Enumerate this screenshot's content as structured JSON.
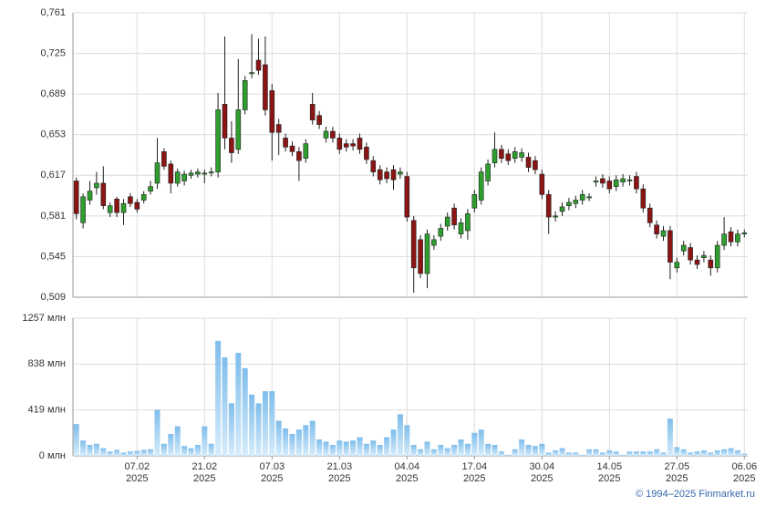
{
  "chart_data": [
    {
      "type": "candlestick",
      "up_color": "#2e9e2e",
      "down_color": "#8b1414",
      "ylim": [
        0.509,
        0.761
      ],
      "yticks": [
        {
          "value": 0.761,
          "label": "0,761"
        },
        {
          "value": 0.725,
          "label": "0,725"
        },
        {
          "value": 0.689,
          "label": "0,689"
        },
        {
          "value": 0.653,
          "label": "0,653"
        },
        {
          "value": 0.617,
          "label": "0,617"
        },
        {
          "value": 0.581,
          "label": "0,581"
        },
        {
          "value": 0.545,
          "label": "0,545"
        },
        {
          "value": 0.509,
          "label": "0,509"
        }
      ],
      "grid": true,
      "open": [
        0.612,
        0.575,
        0.595,
        0.606,
        0.61,
        0.584,
        0.596,
        0.584,
        0.598,
        0.593,
        0.595,
        0.603,
        0.61,
        0.638,
        0.627,
        0.61,
        0.612,
        0.617,
        0.618,
        0.618,
        0.619,
        0.62,
        0.68,
        0.65,
        0.64,
        0.675,
        0.707,
        0.719,
        0.715,
        0.692,
        0.662,
        0.65,
        0.643,
        0.638,
        0.632,
        0.68,
        0.67,
        0.65,
        0.656,
        0.65,
        0.645,
        0.645,
        0.65,
        0.642,
        0.63,
        0.622,
        0.62,
        0.622,
        0.618,
        0.616,
        0.577,
        0.56,
        0.53,
        0.555,
        0.563,
        0.572,
        0.588,
        0.565,
        0.568,
        0.588,
        0.595,
        0.612,
        0.628,
        0.64,
        0.636,
        0.632,
        0.633,
        0.633,
        0.63,
        0.618,
        0.6,
        0.58,
        0.585,
        0.59,
        0.592,
        0.595,
        0.597,
        0.611,
        0.614,
        0.612,
        0.607,
        0.611,
        0.612,
        0.616,
        0.605,
        0.588,
        0.573,
        0.563,
        0.568,
        0.535,
        0.55,
        0.553,
        0.542,
        0.544,
        0.542,
        0.535,
        0.555,
        0.567,
        0.558,
        0.565
      ],
      "high": [
        0.615,
        0.601,
        0.612,
        0.62,
        0.625,
        0.593,
        0.598,
        0.596,
        0.601,
        0.596,
        0.603,
        0.612,
        0.65,
        0.641,
        0.63,
        0.623,
        0.621,
        0.622,
        0.623,
        0.622,
        0.624,
        0.69,
        0.74,
        0.665,
        0.72,
        0.705,
        0.742,
        0.738,
        0.74,
        0.698,
        0.667,
        0.654,
        0.647,
        0.642,
        0.649,
        0.69,
        0.674,
        0.66,
        0.66,
        0.654,
        0.649,
        0.649,
        0.654,
        0.646,
        0.634,
        0.626,
        0.624,
        0.626,
        0.624,
        0.62,
        0.581,
        0.564,
        0.569,
        0.564,
        0.574,
        0.584,
        0.592,
        0.579,
        0.587,
        0.604,
        0.624,
        0.631,
        0.655,
        0.644,
        0.64,
        0.642,
        0.641,
        0.637,
        0.634,
        0.622,
        0.604,
        0.585,
        0.593,
        0.597,
        0.599,
        0.604,
        0.601,
        0.616,
        0.618,
        0.616,
        0.617,
        0.618,
        0.617,
        0.62,
        0.609,
        0.592,
        0.577,
        0.572,
        0.572,
        0.544,
        0.559,
        0.557,
        0.546,
        0.55,
        0.546,
        0.559,
        0.58,
        0.571,
        0.569,
        0.569
      ],
      "low": [
        0.578,
        0.57,
        0.591,
        0.6,
        0.587,
        0.58,
        0.58,
        0.573,
        0.589,
        0.584,
        0.592,
        0.6,
        0.605,
        0.622,
        0.601,
        0.607,
        0.608,
        0.614,
        0.615,
        0.61,
        0.616,
        0.615,
        0.64,
        0.628,
        0.636,
        0.671,
        0.703,
        0.706,
        0.67,
        0.63,
        0.635,
        0.638,
        0.634,
        0.612,
        0.628,
        0.662,
        0.658,
        0.646,
        0.646,
        0.636,
        0.638,
        0.639,
        0.636,
        0.627,
        0.616,
        0.609,
        0.61,
        0.604,
        0.614,
        0.576,
        0.513,
        0.526,
        0.517,
        0.551,
        0.559,
        0.568,
        0.569,
        0.561,
        0.56,
        0.584,
        0.591,
        0.608,
        0.624,
        0.628,
        0.626,
        0.628,
        0.629,
        0.62,
        0.618,
        0.596,
        0.565,
        0.576,
        0.581,
        0.586,
        0.588,
        0.591,
        0.594,
        0.607,
        0.606,
        0.601,
        0.603,
        0.607,
        0.608,
        0.601,
        0.584,
        0.571,
        0.561,
        0.559,
        0.525,
        0.531,
        0.546,
        0.538,
        0.534,
        0.54,
        0.528,
        0.531,
        0.551,
        0.554,
        0.554,
        0.562
      ],
      "close": [
        0.583,
        0.598,
        0.603,
        0.61,
        0.59,
        0.59,
        0.584,
        0.592,
        0.592,
        0.587,
        0.6,
        0.607,
        0.628,
        0.625,
        0.61,
        0.62,
        0.618,
        0.619,
        0.62,
        0.619,
        0.62,
        0.675,
        0.65,
        0.637,
        0.675,
        0.701,
        0.708,
        0.71,
        0.675,
        0.655,
        0.655,
        0.642,
        0.638,
        0.63,
        0.645,
        0.666,
        0.662,
        0.656,
        0.65,
        0.64,
        0.642,
        0.643,
        0.64,
        0.631,
        0.62,
        0.613,
        0.614,
        0.613,
        0.62,
        0.58,
        0.535,
        0.53,
        0.565,
        0.56,
        0.57,
        0.58,
        0.573,
        0.575,
        0.583,
        0.6,
        0.62,
        0.627,
        0.64,
        0.632,
        0.63,
        0.638,
        0.637,
        0.624,
        0.622,
        0.6,
        0.58,
        0.581,
        0.589,
        0.593,
        0.595,
        0.6,
        0.598,
        0.612,
        0.61,
        0.605,
        0.613,
        0.614,
        0.613,
        0.605,
        0.588,
        0.575,
        0.565,
        0.568,
        0.54,
        0.54,
        0.555,
        0.542,
        0.538,
        0.546,
        0.535,
        0.555,
        0.565,
        0.558,
        0.565,
        0.566
      ]
    },
    {
      "type": "bar",
      "color": "#8cc6f0",
      "ylim": [
        0,
        1257
      ],
      "yticks": [
        {
          "value": 1257,
          "label": "1257 млн"
        },
        {
          "value": 838,
          "label": "838 млн"
        },
        {
          "value": 419,
          "label": "419 млн"
        },
        {
          "value": 0,
          "label": "0 млн"
        }
      ],
      "grid": true,
      "categories": [
        null,
        null,
        null,
        null,
        null,
        null,
        null,
        null,
        null,
        "07.02\n2025",
        null,
        null,
        null,
        null,
        null,
        null,
        null,
        null,
        null,
        "21.02\n2025",
        null,
        null,
        null,
        null,
        null,
        null,
        null,
        null,
        null,
        "07.03\n2025",
        null,
        null,
        null,
        null,
        null,
        null,
        null,
        null,
        null,
        "21.03\n2025",
        null,
        null,
        null,
        null,
        null,
        null,
        null,
        null,
        null,
        "04.04\n2025",
        null,
        null,
        null,
        null,
        null,
        null,
        null,
        null,
        null,
        "17.04\n2025",
        null,
        null,
        null,
        null,
        null,
        null,
        null,
        null,
        null,
        "30.04\n2025",
        null,
        null,
        null,
        null,
        null,
        null,
        null,
        null,
        null,
        "14.05\n2025",
        null,
        null,
        null,
        null,
        null,
        null,
        null,
        null,
        null,
        "27.05\n2025",
        null,
        null,
        null,
        null,
        null,
        null,
        null,
        null,
        null,
        "06.06\n2025"
      ],
      "values": [
        290,
        140,
        100,
        110,
        70,
        40,
        55,
        30,
        40,
        45,
        55,
        60,
        420,
        110,
        200,
        270,
        90,
        70,
        100,
        270,
        110,
        1050,
        900,
        480,
        940,
        800,
        560,
        480,
        590,
        590,
        320,
        250,
        200,
        240,
        280,
        320,
        150,
        130,
        100,
        140,
        130,
        140,
        170,
        110,
        140,
        100,
        170,
        240,
        380,
        280,
        100,
        60,
        130,
        60,
        100,
        70,
        100,
        150,
        110,
        210,
        240,
        110,
        100,
        40,
        10,
        60,
        150,
        100,
        90,
        110,
        30,
        50,
        70,
        30,
        30,
        10,
        60,
        60,
        30,
        50,
        40,
        10,
        40,
        40,
        40,
        40,
        60,
        30,
        340,
        80,
        60,
        30,
        40,
        50,
        30,
        50,
        60,
        70,
        50,
        20
      ]
    }
  ],
  "footer": "© 1994–2025 Finmarket.ru"
}
